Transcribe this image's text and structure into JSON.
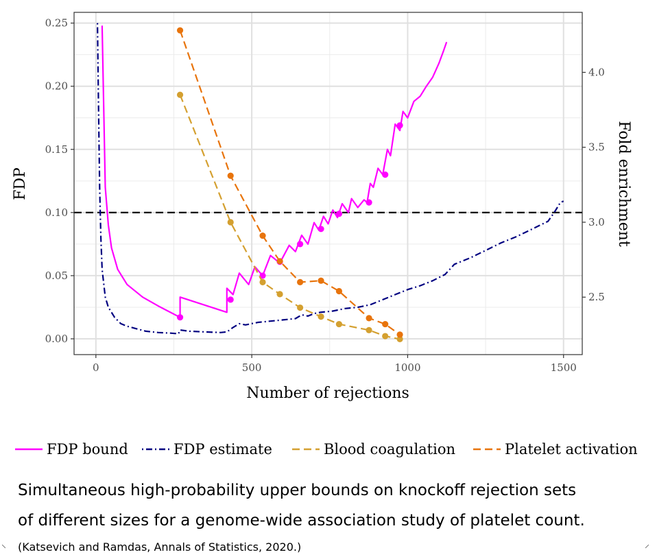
{
  "chart_data": {
    "type": "line",
    "xlabel": "Number of rejections",
    "ylabel": "FDP",
    "y2label": "Fold enrichment",
    "xlim": [
      -70,
      1560
    ],
    "ylim": [
      -0.0125,
      0.2585
    ],
    "y2lim": [
      2.1167,
      4.4004
    ],
    "x_ticks": [
      0,
      500,
      1000,
      1500
    ],
    "y_ticks": [
      0.0,
      0.05,
      0.1,
      0.15,
      0.2,
      0.25
    ],
    "y2_ticks": [
      2.5,
      3.0,
      3.5,
      4.0
    ],
    "grid": true,
    "hline": 0.1,
    "legend_position": "bottom",
    "series": [
      {
        "name": "FDP bound",
        "color": "#ff00ff",
        "style": "solid",
        "axis": "left",
        "x": [
          20,
          30,
          40,
          50,
          70,
          100,
          150,
          200,
          270,
          270,
          420,
          420,
          440,
          460,
          490,
          510,
          535,
          560,
          590,
          620,
          640,
          660,
          680,
          700,
          715,
          730,
          745,
          760,
          775,
          790,
          810,
          820,
          840,
          860,
          870,
          880,
          890,
          905,
          920,
          935,
          945,
          960,
          975,
          985,
          1000,
          1020,
          1040,
          1060,
          1080,
          1100,
          1115,
          1125
        ],
        "y": [
          0.248,
          0.12,
          0.09,
          0.072,
          0.055,
          0.043,
          0.033,
          0.026,
          0.017,
          0.033,
          0.021,
          0.04,
          0.035,
          0.052,
          0.043,
          0.057,
          0.05,
          0.066,
          0.06,
          0.074,
          0.069,
          0.082,
          0.075,
          0.092,
          0.086,
          0.097,
          0.091,
          0.102,
          0.096,
          0.107,
          0.1,
          0.111,
          0.104,
          0.11,
          0.108,
          0.123,
          0.12,
          0.135,
          0.13,
          0.15,
          0.145,
          0.17,
          0.165,
          0.18,
          0.175,
          0.188,
          0.192,
          0.2,
          0.207,
          0.218,
          0.228,
          0.235
        ],
        "markers_x": [
          270,
          432,
          535,
          590,
          655,
          722,
          780,
          876,
          928,
          975
        ],
        "markers_y": [
          0.017,
          0.031,
          0.05,
          0.061,
          0.075,
          0.087,
          0.099,
          0.108,
          0.13,
          0.169
        ]
      },
      {
        "name": "FDP estimate",
        "color": "#000080",
        "style": "dotdash",
        "axis": "left",
        "x": [
          5,
          8,
          12,
          16,
          20,
          30,
          40,
          60,
          80,
          100,
          130,
          160,
          200,
          240,
          265,
          270,
          300,
          350,
          400,
          420,
          440,
          460,
          480,
          520,
          560,
          600,
          640,
          660,
          680,
          700,
          720,
          760,
          800,
          840,
          880,
          920,
          960,
          1000,
          1040,
          1080,
          1120,
          1150,
          1200,
          1250,
          1300,
          1350,
          1400,
          1450,
          1470,
          1490,
          1500
        ],
        "y": [
          0.25,
          0.19,
          0.12,
          0.08,
          0.055,
          0.033,
          0.025,
          0.017,
          0.012,
          0.01,
          0.008,
          0.006,
          0.005,
          0.0045,
          0.004,
          0.007,
          0.006,
          0.0055,
          0.005,
          0.0055,
          0.009,
          0.012,
          0.011,
          0.013,
          0.014,
          0.015,
          0.016,
          0.019,
          0.018,
          0.02,
          0.021,
          0.022,
          0.024,
          0.025,
          0.027,
          0.031,
          0.035,
          0.039,
          0.042,
          0.046,
          0.051,
          0.059,
          0.064,
          0.07,
          0.076,
          0.081,
          0.087,
          0.093,
          0.1,
          0.108,
          0.109
        ]
      },
      {
        "name": "Blood coagulation",
        "color": "#d4a030",
        "style": "dashed",
        "axis": "right",
        "x": [
          270,
          432,
          535,
          590,
          655,
          722,
          780,
          876,
          928,
          975
        ],
        "y": [
          3.85,
          3.0,
          2.6,
          2.52,
          2.43,
          2.37,
          2.32,
          2.28,
          2.24,
          2.22
        ]
      },
      {
        "name": "Platelet activation",
        "color": "#e8740c",
        "style": "dashed",
        "axis": "right",
        "x": [
          270,
          432,
          535,
          590,
          655,
          722,
          780,
          876,
          928,
          975
        ],
        "y": [
          4.28,
          3.31,
          2.91,
          2.74,
          2.6,
          2.61,
          2.54,
          2.36,
          2.32,
          2.25
        ]
      }
    ]
  },
  "caption": {
    "line1": "Simultaneous high-probability upper bounds on knockoff rejection sets",
    "line2": "of different sizes for a genome-wide association study of platelet count.",
    "citation": "(Katsevich and Ramdas, Annals of Statistics, 2020.)"
  }
}
